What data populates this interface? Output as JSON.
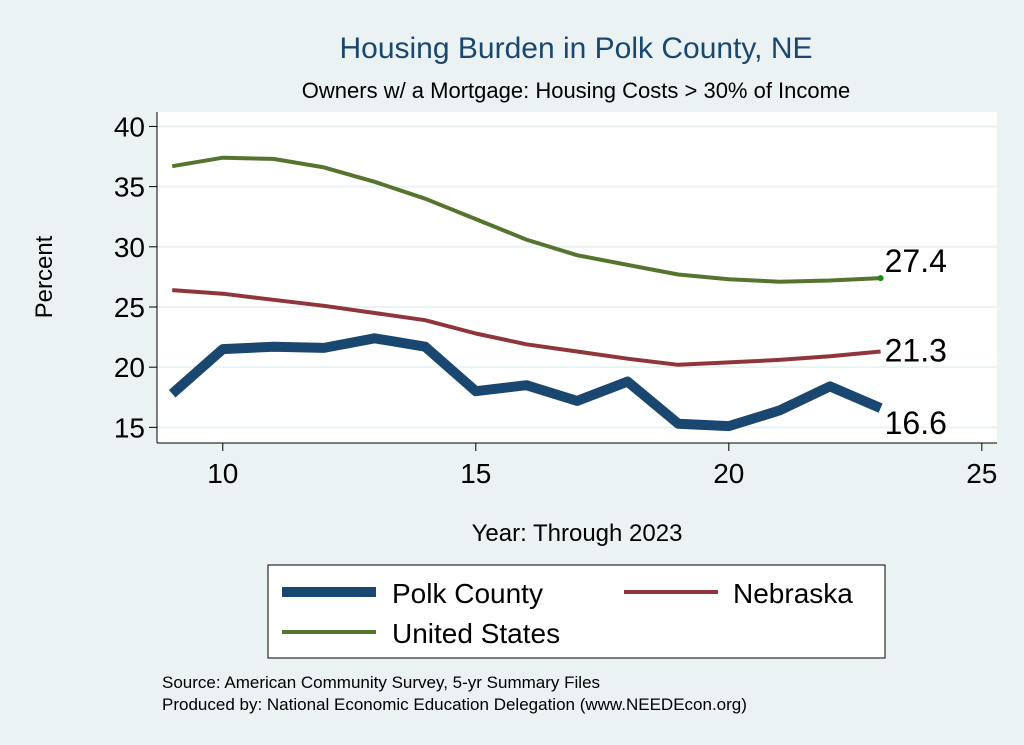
{
  "chart_data": {
    "type": "line",
    "title": "Housing Burden in Polk County, NE",
    "subtitle": "Owners w/ a Mortgage: Housing Costs > 30% of Income",
    "xlabel": "Year: Through 2023",
    "ylabel": "Percent",
    "xlim": [
      8.7,
      25.3
    ],
    "ylim": [
      13.7,
      41.2
    ],
    "xticks": [
      10,
      15,
      20,
      25
    ],
    "yticks": [
      15,
      20,
      25,
      30,
      35,
      40
    ],
    "grid": true,
    "legend_position": "bottom",
    "x": [
      9,
      10,
      11,
      12,
      13,
      14,
      15,
      16,
      17,
      18,
      19,
      20,
      21,
      22,
      23
    ],
    "series": [
      {
        "name": "Polk County",
        "color": "#1a476f",
        "values": [
          17.8,
          21.5,
          21.7,
          21.6,
          22.4,
          21.7,
          18.0,
          18.5,
          17.2,
          18.8,
          15.3,
          15.1,
          16.4,
          18.4,
          16.6
        ],
        "end_label": "16.6"
      },
      {
        "name": "Nebraska",
        "color": "#90353b",
        "values": [
          26.4,
          26.1,
          25.6,
          25.1,
          24.5,
          23.9,
          22.8,
          21.9,
          21.3,
          20.7,
          20.2,
          20.4,
          20.6,
          20.9,
          21.3
        ],
        "end_label": "21.3"
      },
      {
        "name": "United States",
        "color": "#55752f",
        "values": [
          36.7,
          37.4,
          37.3,
          36.6,
          35.4,
          34.0,
          32.3,
          30.6,
          29.3,
          28.5,
          27.7,
          27.3,
          27.1,
          27.2,
          27.4
        ],
        "end_label": "27.4"
      }
    ]
  },
  "footer": {
    "source": "Source: American Community Survey, 5-yr Summary Files",
    "produced": "Produced by: National Economic Education Delegation (www.NEEDEcon.org)"
  }
}
